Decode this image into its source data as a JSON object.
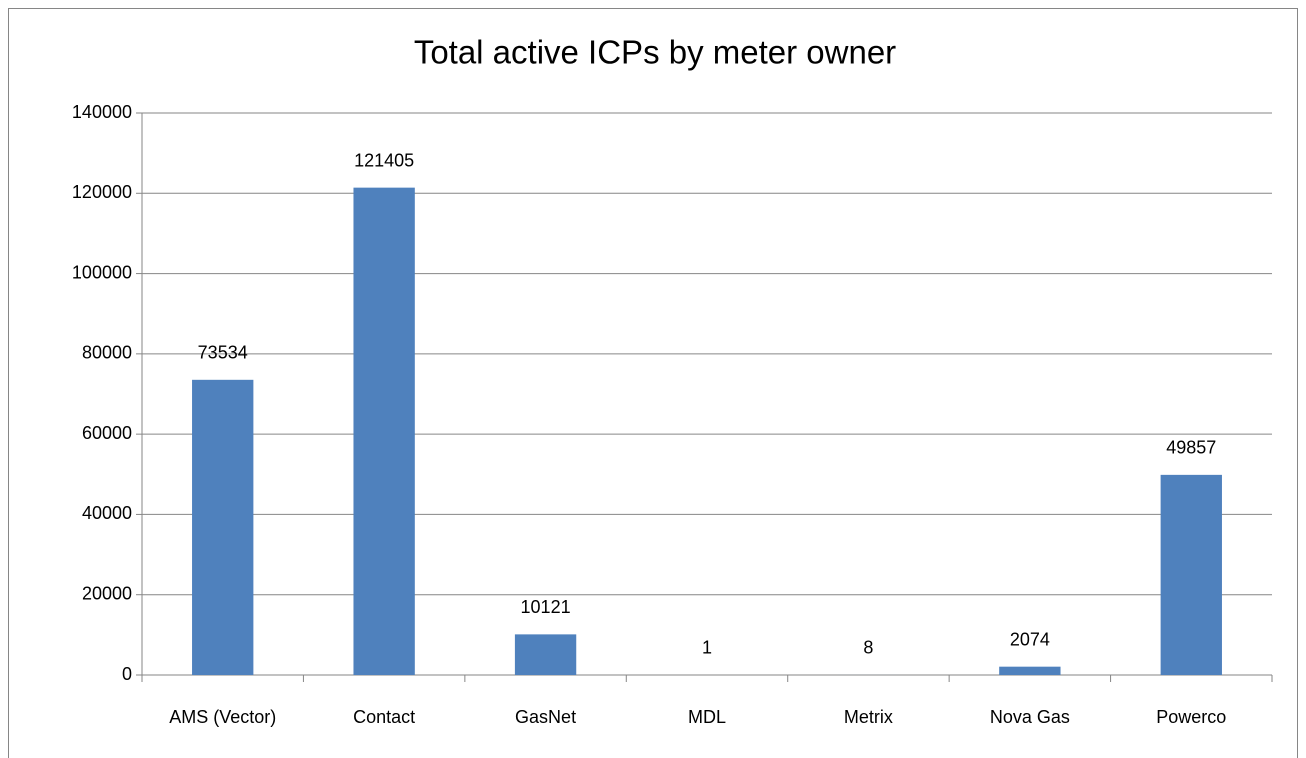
{
  "chart_data": {
    "type": "bar",
    "title": "Total active ICPs by meter owner",
    "categories": [
      "AMS (Vector)",
      "Contact",
      "GasNet",
      "MDL",
      "Metrix",
      "Nova Gas",
      "Powerco"
    ],
    "values": [
      73534,
      121405,
      10121,
      1,
      8,
      2074,
      49857
    ],
    "color": "#4f81bd",
    "ylim": [
      0,
      140000
    ],
    "yticks": [
      0,
      20000,
      40000,
      60000,
      80000,
      100000,
      120000,
      140000
    ],
    "grid": true
  }
}
